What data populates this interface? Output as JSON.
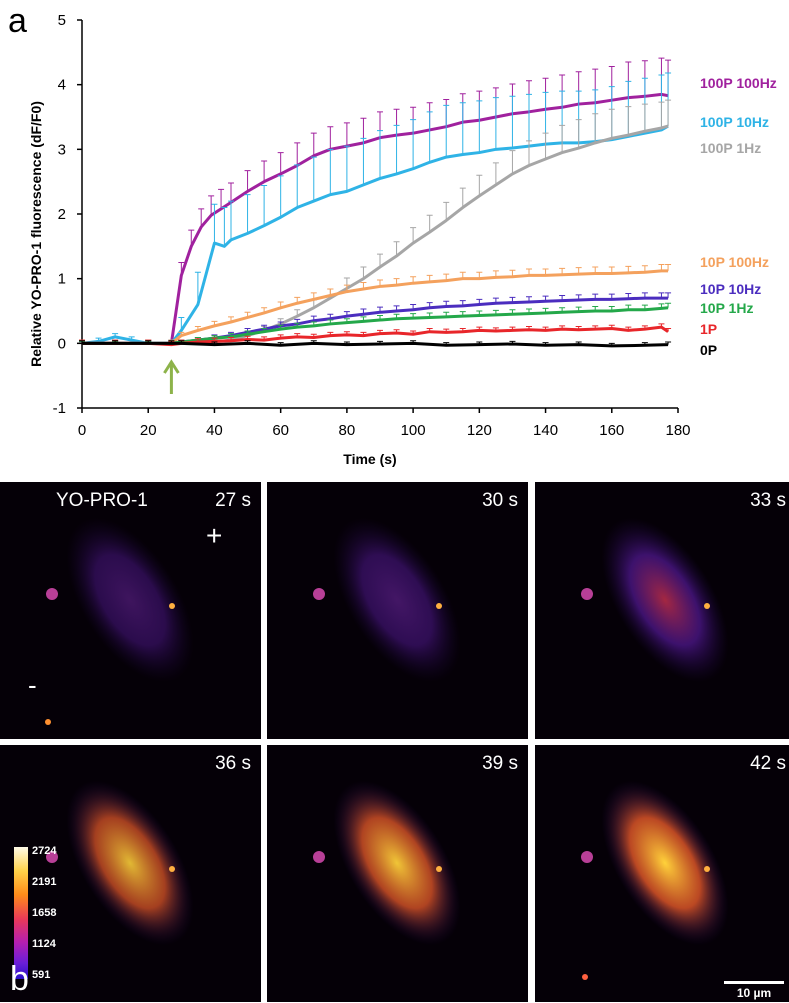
{
  "panel_a_label": "a",
  "panel_b_label": "b",
  "chart_data": {
    "type": "line",
    "xlabel": "Time (s)",
    "ylabel": "Relative YO-PRO-1 fluorescence (dF/F0)",
    "xlim": [
      0,
      180
    ],
    "ylim": [
      -1,
      5
    ],
    "xticks": [
      "0",
      "20",
      "40",
      "60",
      "80",
      "100",
      "120",
      "140",
      "160",
      "180"
    ],
    "yticks": [
      "-1",
      "0",
      "1",
      "2",
      "3",
      "4",
      "5"
    ],
    "stimulus_arrow_x": 27,
    "stimulus_arrow_color": "#8db34a",
    "series": [
      {
        "name": "100P 100Hz",
        "color": "#a0219e",
        "x": [
          0,
          10,
          20,
          27,
          30,
          33,
          36,
          39,
          42,
          45,
          50,
          55,
          60,
          65,
          70,
          75,
          80,
          85,
          90,
          95,
          100,
          105,
          110,
          115,
          120,
          125,
          130,
          135,
          140,
          145,
          150,
          155,
          160,
          165,
          170,
          175,
          177
        ],
        "y": [
          0,
          0,
          0,
          0,
          1.05,
          1.5,
          1.8,
          1.98,
          2.08,
          2.18,
          2.35,
          2.5,
          2.62,
          2.75,
          2.9,
          3.0,
          3.05,
          3.1,
          3.18,
          3.22,
          3.25,
          3.3,
          3.35,
          3.42,
          3.45,
          3.5,
          3.55,
          3.58,
          3.62,
          3.65,
          3.7,
          3.72,
          3.76,
          3.8,
          3.82,
          3.85,
          3.83
        ],
        "err": [
          0.05,
          0.05,
          0.05,
          0.05,
          0.2,
          0.25,
          0.28,
          0.3,
          0.3,
          0.3,
          0.32,
          0.32,
          0.33,
          0.35,
          0.35,
          0.35,
          0.36,
          0.38,
          0.4,
          0.4,
          0.4,
          0.42,
          0.42,
          0.44,
          0.45,
          0.45,
          0.46,
          0.48,
          0.48,
          0.5,
          0.5,
          0.52,
          0.52,
          0.55,
          0.55,
          0.56,
          0.55
        ]
      },
      {
        "name": "100P 10Hz",
        "color": "#2fb3e6",
        "x": [
          0,
          5,
          10,
          15,
          20,
          27,
          30,
          35,
          40,
          43,
          45,
          50,
          55,
          60,
          65,
          70,
          75,
          80,
          85,
          90,
          95,
          100,
          105,
          110,
          115,
          120,
          125,
          130,
          135,
          140,
          145,
          150,
          155,
          160,
          165,
          170,
          175,
          177
        ],
        "y": [
          0,
          0.03,
          0.1,
          0.05,
          0,
          0,
          0.2,
          0.6,
          1.55,
          1.5,
          1.6,
          1.7,
          1.82,
          1.95,
          2.1,
          2.2,
          2.3,
          2.35,
          2.45,
          2.55,
          2.62,
          2.7,
          2.8,
          2.88,
          2.92,
          2.95,
          3.0,
          3.02,
          3.05,
          3.08,
          3.1,
          3.1,
          3.12,
          3.15,
          3.2,
          3.25,
          3.3,
          3.36
        ],
        "err": [
          0.05,
          0.05,
          0.05,
          0.05,
          0.05,
          0.05,
          0.2,
          0.5,
          0.6,
          0.6,
          0.6,
          0.6,
          0.62,
          0.64,
          0.66,
          0.68,
          0.7,
          0.7,
          0.72,
          0.74,
          0.75,
          0.76,
          0.78,
          0.8,
          0.8,
          0.8,
          0.8,
          0.8,
          0.8,
          0.8,
          0.8,
          0.8,
          0.8,
          0.82,
          0.85,
          0.85,
          0.85,
          0.82
        ]
      },
      {
        "name": "100P 1Hz",
        "color": "#a6a6a6",
        "x": [
          0,
          10,
          20,
          27,
          30,
          40,
          45,
          50,
          55,
          60,
          65,
          70,
          75,
          80,
          85,
          90,
          95,
          100,
          105,
          110,
          115,
          120,
          125,
          130,
          135,
          140,
          145,
          150,
          155,
          160,
          165,
          170,
          175,
          177
        ],
        "y": [
          0,
          0,
          0,
          0,
          0,
          0.02,
          0.05,
          0.12,
          0.2,
          0.3,
          0.42,
          0.55,
          0.7,
          0.85,
          1.0,
          1.18,
          1.35,
          1.55,
          1.72,
          1.9,
          2.1,
          2.28,
          2.45,
          2.62,
          2.75,
          2.85,
          2.95,
          3.02,
          3.1,
          3.17,
          3.22,
          3.28,
          3.33,
          3.36
        ],
        "err": [
          0.02,
          0.02,
          0.02,
          0.02,
          0.02,
          0.03,
          0.04,
          0.05,
          0.06,
          0.08,
          0.1,
          0.12,
          0.14,
          0.16,
          0.18,
          0.2,
          0.22,
          0.24,
          0.26,
          0.28,
          0.3,
          0.32,
          0.34,
          0.36,
          0.38,
          0.4,
          0.42,
          0.44,
          0.45,
          0.45,
          0.44,
          0.42,
          0.4,
          0.4
        ]
      },
      {
        "name": "10P 100Hz",
        "color": "#f4a15d",
        "x": [
          0,
          10,
          20,
          27,
          30,
          35,
          40,
          45,
          50,
          55,
          60,
          65,
          70,
          75,
          80,
          85,
          90,
          95,
          100,
          105,
          110,
          115,
          120,
          125,
          130,
          135,
          140,
          145,
          150,
          155,
          160,
          165,
          170,
          175,
          177
        ],
        "y": [
          0,
          0,
          0,
          0,
          0.12,
          0.2,
          0.27,
          0.33,
          0.4,
          0.47,
          0.55,
          0.62,
          0.68,
          0.74,
          0.8,
          0.84,
          0.88,
          0.9,
          0.93,
          0.95,
          0.97,
          1.0,
          1.0,
          1.02,
          1.03,
          1.05,
          1.05,
          1.06,
          1.07,
          1.08,
          1.08,
          1.09,
          1.1,
          1.12,
          1.12
        ],
        "err": [
          0.05,
          0.05,
          0.05,
          0.05,
          0.05,
          0.06,
          0.07,
          0.08,
          0.08,
          0.08,
          0.09,
          0.09,
          0.1,
          0.1,
          0.1,
          0.1,
          0.1,
          0.1,
          0.1,
          0.1,
          0.1,
          0.1,
          0.1,
          0.1,
          0.1,
          0.1,
          0.1,
          0.1,
          0.1,
          0.1,
          0.1,
          0.1,
          0.1,
          0.1,
          0.1
        ]
      },
      {
        "name": "10P 10Hz",
        "color": "#4b2dbf",
        "x": [
          0,
          10,
          20,
          27,
          30,
          35,
          40,
          45,
          50,
          55,
          60,
          65,
          70,
          75,
          80,
          85,
          90,
          95,
          100,
          105,
          110,
          115,
          120,
          125,
          130,
          135,
          140,
          145,
          150,
          155,
          160,
          165,
          170,
          175,
          177
        ],
        "y": [
          0,
          0,
          0,
          0,
          0.02,
          0.05,
          0.08,
          0.12,
          0.17,
          0.22,
          0.27,
          0.3,
          0.35,
          0.38,
          0.42,
          0.45,
          0.48,
          0.5,
          0.52,
          0.55,
          0.57,
          0.58,
          0.6,
          0.62,
          0.63,
          0.64,
          0.65,
          0.66,
          0.67,
          0.68,
          0.68,
          0.69,
          0.7,
          0.7,
          0.7
        ],
        "err": [
          0.03,
          0.03,
          0.03,
          0.03,
          0.03,
          0.04,
          0.05,
          0.05,
          0.06,
          0.06,
          0.06,
          0.07,
          0.07,
          0.07,
          0.07,
          0.08,
          0.08,
          0.08,
          0.08,
          0.08,
          0.08,
          0.08,
          0.08,
          0.08,
          0.08,
          0.08,
          0.08,
          0.08,
          0.08,
          0.08,
          0.08,
          0.08,
          0.08,
          0.08,
          0.08
        ]
      },
      {
        "name": "10P 1Hz",
        "color": "#24a84a",
        "x": [
          0,
          10,
          20,
          27,
          30,
          35,
          40,
          45,
          50,
          55,
          60,
          65,
          70,
          75,
          80,
          85,
          90,
          95,
          100,
          105,
          110,
          115,
          120,
          125,
          130,
          135,
          140,
          145,
          150,
          155,
          160,
          165,
          170,
          175,
          177
        ],
        "y": [
          0,
          0,
          0,
          0,
          0.02,
          0.05,
          0.08,
          0.1,
          0.14,
          0.18,
          0.22,
          0.25,
          0.27,
          0.3,
          0.32,
          0.34,
          0.36,
          0.38,
          0.39,
          0.4,
          0.41,
          0.42,
          0.43,
          0.44,
          0.45,
          0.46,
          0.47,
          0.48,
          0.49,
          0.5,
          0.5,
          0.52,
          0.52,
          0.54,
          0.55
        ],
        "err": [
          0.03,
          0.03,
          0.03,
          0.03,
          0.03,
          0.04,
          0.04,
          0.05,
          0.05,
          0.05,
          0.06,
          0.06,
          0.06,
          0.06,
          0.06,
          0.07,
          0.07,
          0.07,
          0.07,
          0.07,
          0.07,
          0.07,
          0.07,
          0.07,
          0.07,
          0.07,
          0.07,
          0.07,
          0.07,
          0.07,
          0.07,
          0.07,
          0.07,
          0.07,
          0.07
        ]
      },
      {
        "name": "1P",
        "color": "#e8262a",
        "x": [
          0,
          10,
          20,
          27,
          30,
          35,
          40,
          45,
          50,
          55,
          60,
          65,
          70,
          75,
          80,
          85,
          90,
          95,
          100,
          105,
          110,
          115,
          120,
          125,
          130,
          135,
          140,
          145,
          150,
          155,
          160,
          165,
          170,
          175,
          177
        ],
        "y": [
          0,
          0,
          0,
          -0.02,
          0,
          0.02,
          0.03,
          0.04,
          0.06,
          0.05,
          0.08,
          0.1,
          0.09,
          0.12,
          0.13,
          0.12,
          0.15,
          0.16,
          0.14,
          0.18,
          0.17,
          0.18,
          0.2,
          0.19,
          0.2,
          0.21,
          0.2,
          0.22,
          0.21,
          0.22,
          0.23,
          0.2,
          0.22,
          0.25,
          0.18
        ],
        "err": [
          0.05,
          0.05,
          0.05,
          0.05,
          0.05,
          0.05,
          0.05,
          0.05,
          0.05,
          0.05,
          0.05,
          0.05,
          0.05,
          0.05,
          0.05,
          0.05,
          0.05,
          0.05,
          0.05,
          0.05,
          0.05,
          0.05,
          0.05,
          0.05,
          0.05,
          0.05,
          0.05,
          0.05,
          0.05,
          0.05,
          0.05,
          0.05,
          0.05,
          0.05,
          0.05
        ]
      },
      {
        "name": "0P",
        "color": "#000000",
        "x": [
          0,
          10,
          20,
          27,
          30,
          40,
          50,
          60,
          70,
          80,
          90,
          100,
          110,
          120,
          130,
          140,
          150,
          160,
          170,
          177
        ],
        "y": [
          0,
          0,
          0,
          0,
          0,
          -0.02,
          0,
          -0.03,
          0,
          -0.02,
          -0.01,
          0,
          -0.03,
          -0.02,
          -0.01,
          -0.03,
          -0.02,
          -0.04,
          -0.03,
          -0.02
        ],
        "err": [
          0.04,
          0.04,
          0.04,
          0.04,
          0.04,
          0.04,
          0.04,
          0.04,
          0.04,
          0.04,
          0.04,
          0.04,
          0.04,
          0.04,
          0.04,
          0.04,
          0.04,
          0.04,
          0.04,
          0.04
        ]
      }
    ]
  },
  "micrographs": {
    "dye_label": "YO-PRO-1",
    "electrode_plus": "+",
    "electrode_minus": "-",
    "tiles": [
      {
        "time": "27 s",
        "intensity": 0.15
      },
      {
        "time": "30 s",
        "intensity": 0.22
      },
      {
        "time": "33 s",
        "intensity": 0.5
      },
      {
        "time": "36 s",
        "intensity": 0.8
      },
      {
        "time": "39 s",
        "intensity": 0.9
      },
      {
        "time": "42 s",
        "intensity": 1.0
      }
    ],
    "colorbar_ticks": [
      "2724",
      "2191",
      "1658",
      "1124",
      "591"
    ],
    "scalebar_label": "10 µm"
  }
}
